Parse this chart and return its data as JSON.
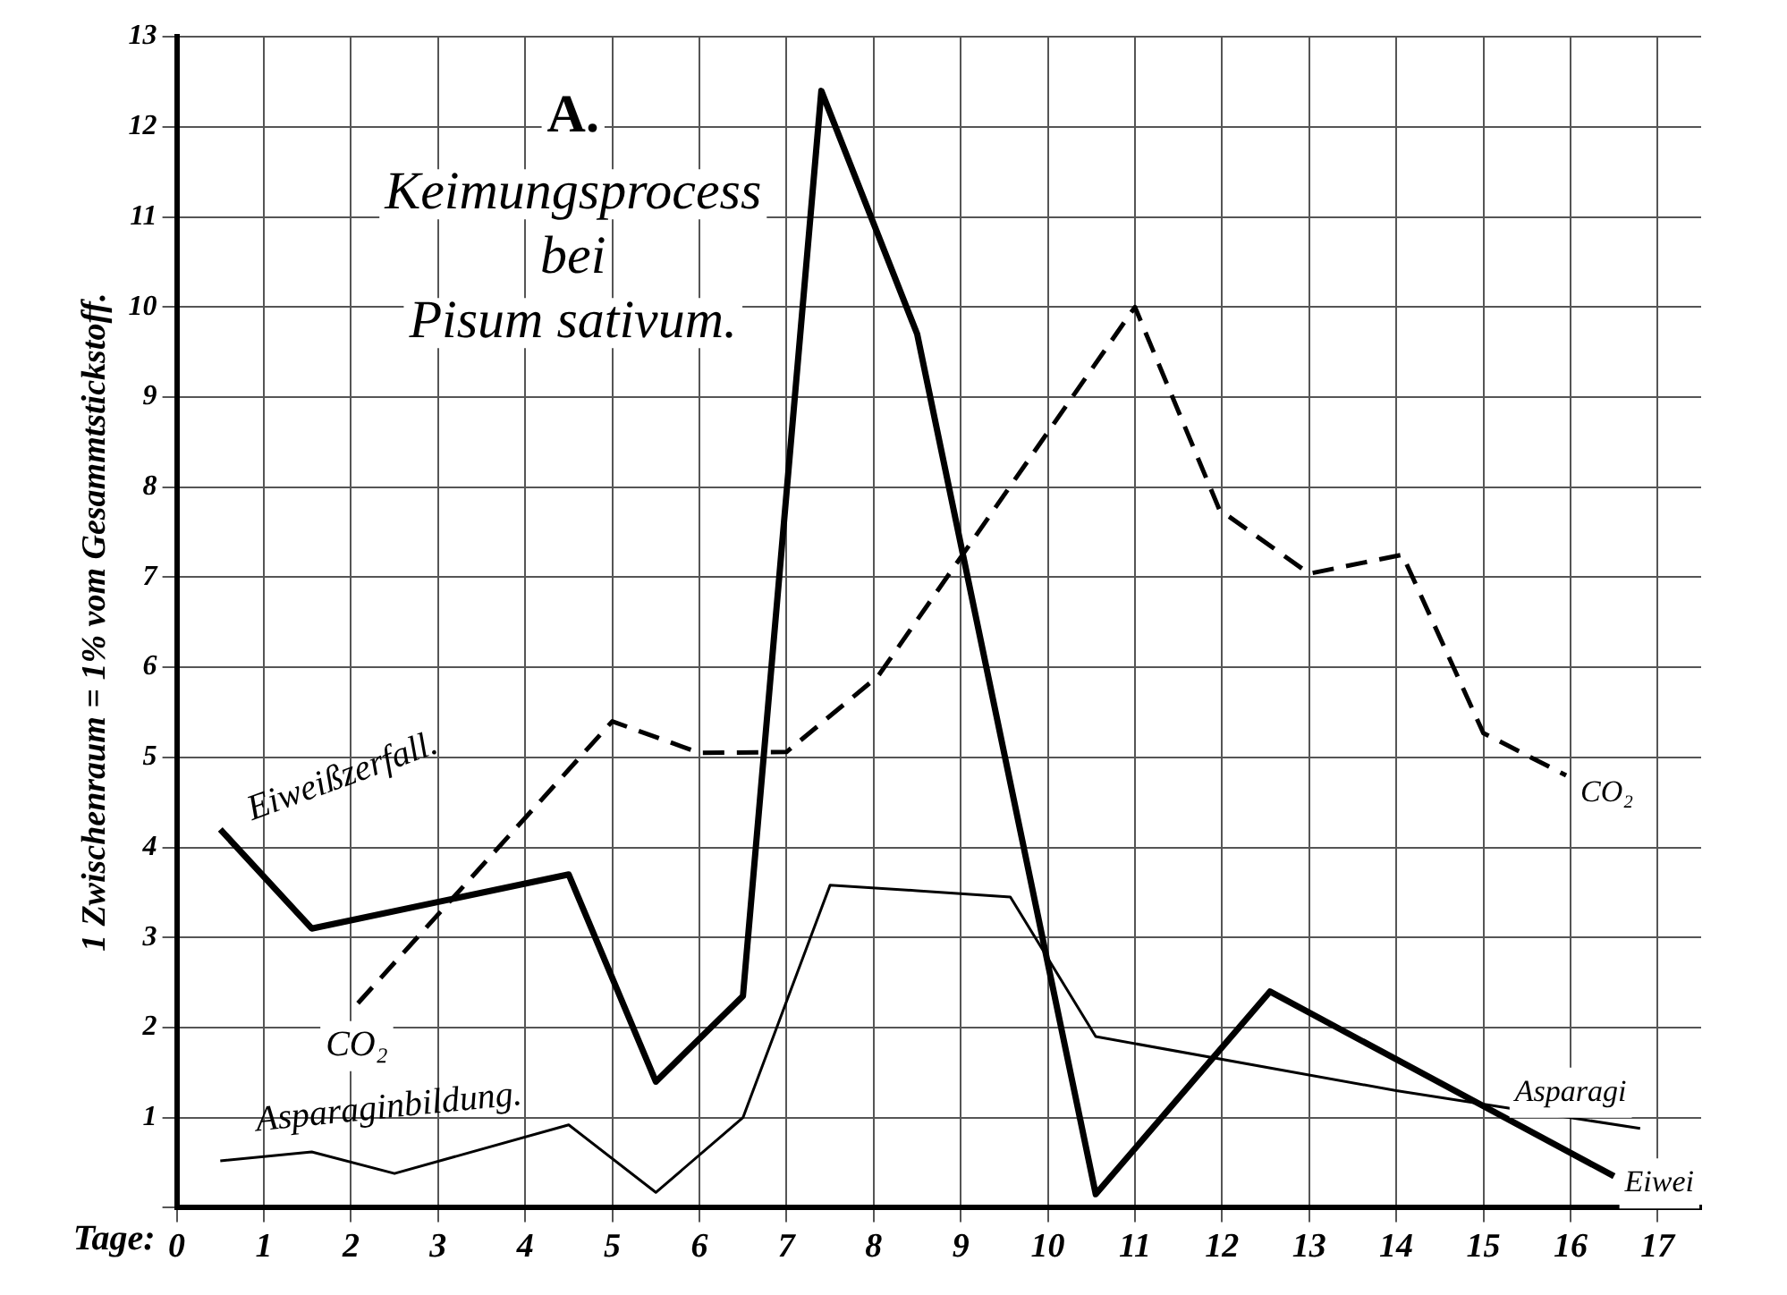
{
  "chart_data": {
    "type": "line",
    "title": "A.",
    "subtitle": "Keimungsprocess bei Pisum sativum.",
    "xlabel": "Tage:",
    "ylabel": "1 Zwischenraum = 1% vom Gesammtstickstoff.",
    "xlim": [
      0,
      17.5
    ],
    "xticks": [
      0,
      1,
      2,
      3,
      4,
      5,
      6,
      7,
      8,
      9,
      10,
      11,
      12,
      13,
      14,
      15,
      16,
      17
    ],
    "ylim": [
      0,
      13
    ],
    "yticks": [
      {
        "value": 0,
        "label": null
      },
      1,
      2,
      3,
      4,
      5,
      6,
      7,
      8,
      9,
      10,
      11,
      12,
      13
    ],
    "grid": true,
    "legend": false,
    "marker": "none",
    "series": [
      {
        "name": "Eiweißzerfall.",
        "color": "#000000",
        "line_style": "solid",
        "x": [
          0.5,
          1.55,
          4.5,
          5.5,
          6.5,
          7.4,
          8.5,
          10.55,
          12.55,
          16.5
        ],
        "values": [
          4.2,
          3.1,
          3.7,
          1.4,
          2.35,
          12.4,
          9.7,
          0.15,
          2.4,
          0.35
        ]
      },
      {
        "name": "CO₂",
        "color": "#000000",
        "line_style": "dashed",
        "x": [
          2.08,
          5.0,
          6.0,
          7.0,
          8.05,
          11.0,
          11.97,
          13.0,
          14.07,
          15.0,
          15.95
        ],
        "values": [
          2.27,
          5.4,
          5.05,
          5.06,
          5.9,
          10.0,
          7.75,
          7.04,
          7.25,
          5.27,
          4.8
        ]
      },
      {
        "name": "Asparaginbildung.",
        "color": "#000000",
        "line_style": "solid",
        "x": [
          0.5,
          1.55,
          2.5,
          4.5,
          5.5,
          6.5,
          7.5,
          8.5,
          9.57,
          10.55,
          14.0,
          16.8
        ],
        "values": [
          0.52,
          0.62,
          0.38,
          0.92,
          0.17,
          1.0,
          3.58,
          3.52,
          3.45,
          1.9,
          1.3,
          0.88
        ]
      }
    ],
    "annotations": [
      "CO₂",
      "Asparagi",
      "Eiwei"
    ]
  }
}
